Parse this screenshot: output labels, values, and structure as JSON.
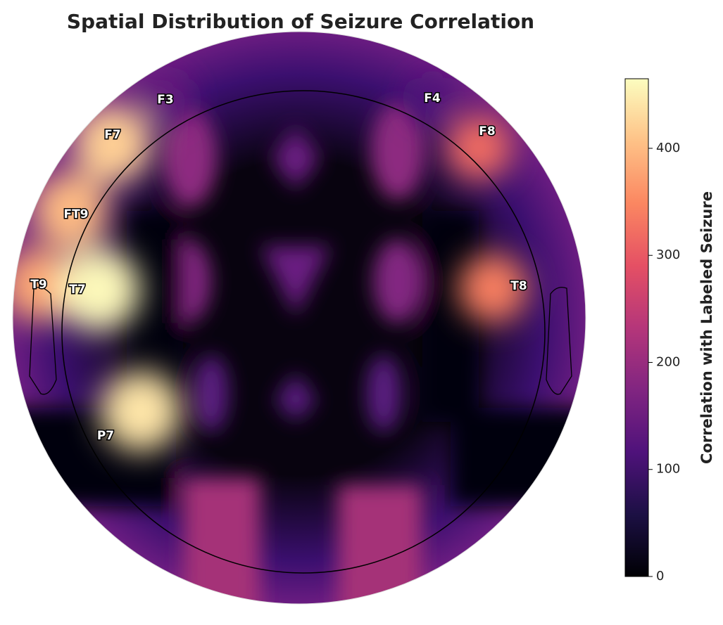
{
  "chart_data": {
    "type": "topomap",
    "title": "Spatial Distribution of Seizure Correlation",
    "colorbar_label": "Correlation with Labeled Seizure",
    "colormap": "magma",
    "clim": [
      0,
      465
    ],
    "cticks": [
      0,
      100,
      200,
      300,
      400
    ],
    "electrodes": [
      "F3",
      "F4",
      "F7",
      "F8",
      "FT9",
      "T9",
      "T7",
      "T8",
      "P7"
    ],
    "values": [
      150,
      120,
      420,
      320,
      400,
      380,
      460,
      340,
      440
    ]
  }
}
